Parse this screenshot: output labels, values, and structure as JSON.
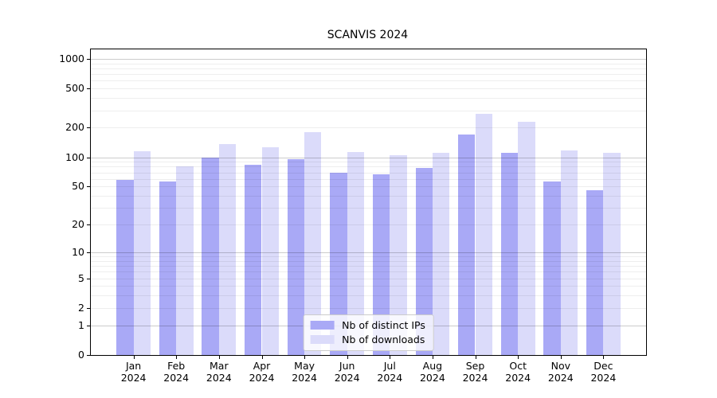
{
  "chart_data": {
    "type": "bar",
    "title": "SCANVIS 2024",
    "categories": [
      "Jan",
      "Feb",
      "Mar",
      "Apr",
      "May",
      "Jun",
      "Jul",
      "Aug",
      "Sep",
      "Oct",
      "Nov",
      "Dec"
    ],
    "x_year_label": "2024",
    "series": [
      {
        "name": "Nb of distinct IPs",
        "color": "#a9a9f6",
        "values": [
          58,
          56,
          100,
          84,
          95,
          70,
          67,
          78,
          170,
          110,
          56,
          46
        ]
      },
      {
        "name": "Nb of downloads",
        "color": "#dbdbfa",
        "values": [
          115,
          80,
          137,
          127,
          180,
          114,
          105,
          111,
          275,
          232,
          117,
          110
        ]
      }
    ],
    "y_axis": {
      "scale": "log1p",
      "tick_values": [
        0,
        1,
        2,
        5,
        10,
        20,
        50,
        100,
        200,
        500,
        1000
      ],
      "major_gridline_values": [
        1,
        10,
        100,
        1000
      ],
      "ylim": [
        0,
        1250
      ]
    },
    "x_axis": {
      "label": "",
      "ticks_at_category_centers": true
    },
    "legend": {
      "position": "lower center"
    },
    "grid": true,
    "colors": {
      "background": "#ffffff",
      "spine": "#000000",
      "major_grid": "rgba(0,0,0,0.20)",
      "minor_grid": "rgba(0,0,0,0.065)"
    }
  }
}
